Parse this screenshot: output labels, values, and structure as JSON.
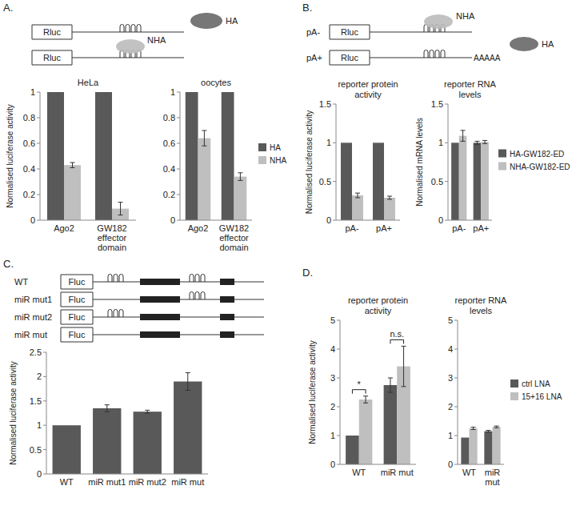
{
  "panel_labels": [
    "A.",
    "B.",
    "C.",
    "D."
  ],
  "schematics": {
    "A": {
      "reporter": "Rluc",
      "proteins": [
        "HA",
        "NHA"
      ]
    },
    "B": {
      "reporter": "Rluc",
      "constructs": [
        "pA-",
        "pA+"
      ],
      "poly_a": "AAAAA",
      "proteins": [
        "NHA",
        "HA"
      ]
    },
    "C": {
      "reporter": "Fluc",
      "constructs": [
        "WT",
        "miR mut1",
        "miR mut2",
        "miR mut"
      ]
    }
  },
  "chart_data": [
    {
      "type": "bar",
      "title": "HeLa",
      "y_label": "Normalised luciferase activity",
      "categories": [
        "Ago2",
        "GW182 effector domain"
      ],
      "series": [
        {
          "color": "#595959",
          "values": [
            1,
            1
          ]
        },
        {
          "color": "#bfbfbf",
          "values": [
            0.43,
            0.09
          ],
          "errors": [
            0.02,
            0.05
          ]
        }
      ],
      "ylim": [
        0,
        1
      ],
      "yticks": [
        0,
        0.2,
        0.4,
        0.6,
        0.8,
        1
      ]
    },
    {
      "type": "bar",
      "title": "oocytes",
      "categories": [
        "Ago2",
        "GW182 effector domain"
      ],
      "series": [
        {
          "name": "HA",
          "color": "#595959",
          "values": [
            1,
            1
          ]
        },
        {
          "name": "NHA",
          "color": "#bfbfbf",
          "values": [
            0.64,
            0.34
          ],
          "errors": [
            0.06,
            0.03
          ]
        }
      ],
      "ylim": [
        0,
        1
      ],
      "yticks": [
        0,
        0.2,
        0.4,
        0.6,
        0.8,
        1
      ],
      "legend": "right"
    },
    {
      "type": "bar",
      "title": "reporter protein activity",
      "y_label": "Normalised luciferase activity",
      "categories": [
        "pA-",
        "pA+"
      ],
      "series": [
        {
          "color": "#595959",
          "values": [
            1,
            1
          ]
        },
        {
          "color": "#bfbfbf",
          "values": [
            0.32,
            0.29
          ],
          "errors": [
            0.03,
            0.02
          ]
        }
      ],
      "ylim": [
        0,
        1.5
      ],
      "yticks": [
        0,
        0.5,
        1,
        1.5
      ]
    },
    {
      "type": "bar",
      "title": "reporter RNA levels",
      "y_label": "Normalised mRNA levels",
      "categories": [
        "pA-",
        "pA+"
      ],
      "series": [
        {
          "name": "HA-GW182-ED",
          "color": "#595959",
          "values": [
            1,
            1
          ],
          "errors": [
            null,
            0.02
          ]
        },
        {
          "name": "NHA-GW182-ED",
          "color": "#bfbfbf",
          "values": [
            1.09,
            1.01
          ],
          "errors": [
            0.07,
            0.02
          ]
        }
      ],
      "ylim": [
        0,
        1.5
      ],
      "yticks": [
        0,
        0.5,
        1,
        1.5
      ],
      "legend": "right"
    },
    {
      "type": "bar",
      "y_label": "Normalised luciferase activity",
      "categories": [
        "WT",
        "miR mut1",
        "miR mut2",
        "miR mut"
      ],
      "values": [
        1,
        1.35,
        1.28,
        1.9
      ],
      "errors": [
        null,
        0.07,
        0.03,
        0.18
      ],
      "color": "#595959",
      "ylim": [
        0,
        2.5
      ],
      "yticks": [
        0,
        0.5,
        1,
        1.5,
        2,
        2.5
      ]
    },
    {
      "type": "bar",
      "title": "reporter protein activity",
      "y_label": "Normalised luciferase activity",
      "categories": [
        "WT",
        "miR mut"
      ],
      "series": [
        {
          "color": "#595959",
          "values": [
            1,
            2.75
          ],
          "errors": [
            null,
            0.25
          ]
        },
        {
          "color": "#bfbfbf",
          "values": [
            2.25,
            3.4
          ],
          "errors": [
            0.12,
            0.7
          ]
        }
      ],
      "ylim": [
        0,
        5
      ],
      "yticks": [
        0,
        1,
        2,
        3,
        4,
        5
      ],
      "annotations": [
        {
          "text": "*",
          "category": 0
        },
        {
          "text": "n.s.",
          "category": 1
        }
      ]
    },
    {
      "type": "bar",
      "title": "reporter RNA levels",
      "categories": [
        "WT",
        "miR mut"
      ],
      "series": [
        {
          "name": "ctrl LNA",
          "color": "#595959",
          "values": [
            0.93,
            1.15
          ],
          "errors": [
            null,
            0.03
          ]
        },
        {
          "name": "15+16 LNA",
          "color": "#bfbfbf",
          "values": [
            1.25,
            1.3
          ],
          "errors": [
            0.04,
            0.03
          ]
        }
      ],
      "ylim": [
        0,
        5
      ],
      "yticks": [
        0,
        1,
        2,
        3,
        4,
        5
      ],
      "legend": "right"
    }
  ]
}
